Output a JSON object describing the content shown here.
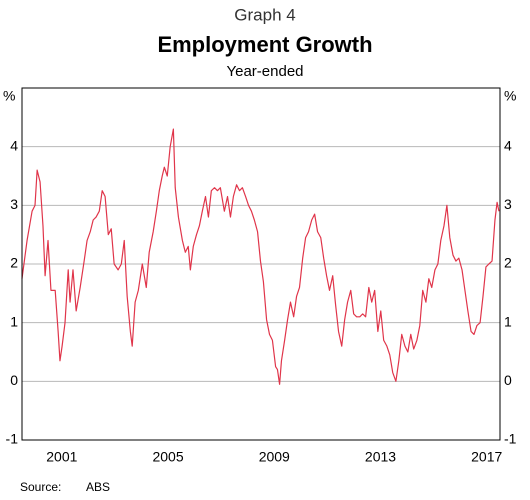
{
  "chart_data": {
    "type": "line",
    "subtitle_top": "Graph 4",
    "title": "Employment Growth",
    "subtitle": "Year-ended",
    "y_unit": "%",
    "source_label": "Source:",
    "source": "ABS",
    "color": "#e0354a",
    "xlim": [
      2000,
      2018
    ],
    "ylim": [
      -1,
      5
    ],
    "yticks": [
      -1,
      0,
      1,
      2,
      3,
      4
    ],
    "xticks": [
      {
        "value": 2001.5,
        "label": "2001"
      },
      {
        "value": 2005.5,
        "label": "2005"
      },
      {
        "value": 2009.5,
        "label": "2009"
      },
      {
        "value": 2013.5,
        "label": "2013"
      },
      {
        "value": 2017.5,
        "label": "2017"
      }
    ],
    "grid": true,
    "x": [
      2000.0,
      2000.19,
      2000.38,
      2000.49,
      2000.57,
      2000.68,
      2000.79,
      2000.87,
      2000.98,
      2001.09,
      2001.25,
      2001.36,
      2001.43,
      2001.51,
      2001.62,
      2001.74,
      2001.81,
      2001.92,
      2002.04,
      2002.19,
      2002.34,
      2002.45,
      2002.57,
      2002.68,
      2002.79,
      2002.91,
      2003.02,
      2003.13,
      2003.25,
      2003.36,
      2003.47,
      2003.62,
      2003.74,
      2003.85,
      2003.96,
      2004.08,
      2004.15,
      2004.26,
      2004.38,
      2004.53,
      2004.68,
      2004.79,
      2004.94,
      2005.06,
      2005.17,
      2005.28,
      2005.36,
      2005.47,
      2005.58,
      2005.7,
      2005.77,
      2005.89,
      2006.04,
      2006.15,
      2006.26,
      2006.34,
      2006.45,
      2006.57,
      2006.68,
      2006.79,
      2006.91,
      2007.02,
      2007.13,
      2007.25,
      2007.36,
      2007.47,
      2007.62,
      2007.74,
      2007.85,
      2007.96,
      2008.08,
      2008.19,
      2008.3,
      2008.42,
      2008.53,
      2008.64,
      2008.75,
      2008.87,
      2008.98,
      2009.09,
      2009.21,
      2009.32,
      2009.43,
      2009.55,
      2009.62,
      2009.7,
      2009.77,
      2009.89,
      2010.0,
      2010.11,
      2010.23,
      2010.34,
      2010.45,
      2010.57,
      2010.68,
      2010.79,
      2010.91,
      2011.02,
      2011.13,
      2011.25,
      2011.36,
      2011.47,
      2011.58,
      2011.7,
      2011.81,
      2011.92,
      2012.04,
      2012.15,
      2012.26,
      2012.38,
      2012.49,
      2012.6,
      2012.72,
      2012.83,
      2012.94,
      2013.06,
      2013.17,
      2013.28,
      2013.4,
      2013.51,
      2013.62,
      2013.74,
      2013.85,
      2013.96,
      2014.08,
      2014.19,
      2014.3,
      2014.42,
      2014.53,
      2014.64,
      2014.75,
      2014.87,
      2014.98,
      2015.09,
      2015.21,
      2015.32,
      2015.43,
      2015.55,
      2015.66,
      2015.77,
      2015.89,
      2016.0,
      2016.11,
      2016.23,
      2016.34,
      2016.45,
      2016.57,
      2016.68,
      2016.79,
      2016.91,
      2017.02,
      2017.13,
      2017.25,
      2017.36,
      2017.47,
      2017.58,
      2017.7,
      2017.81,
      2017.89,
      2017.96
    ],
    "values": [
      1.75,
      2.4,
      2.9,
      3.0,
      3.6,
      3.4,
      2.65,
      1.8,
      2.4,
      1.55,
      1.55,
      0.85,
      0.35,
      0.6,
      1.0,
      1.9,
      1.35,
      1.9,
      1.2,
      1.6,
      2.05,
      2.4,
      2.55,
      2.75,
      2.8,
      2.9,
      3.25,
      3.15,
      2.5,
      2.6,
      2.0,
      1.9,
      2.0,
      2.4,
      1.45,
      0.85,
      0.6,
      1.35,
      1.55,
      2.0,
      1.6,
      2.2,
      2.55,
      2.9,
      3.25,
      3.5,
      3.65,
      3.5,
      4.0,
      4.3,
      3.3,
      2.8,
      2.4,
      2.2,
      2.3,
      1.9,
      2.3,
      2.5,
      2.65,
      2.9,
      3.15,
      2.8,
      3.25,
      3.3,
      3.25,
      3.3,
      2.9,
      3.15,
      2.8,
      3.15,
      3.35,
      3.25,
      3.3,
      3.15,
      3.0,
      2.9,
      2.75,
      2.55,
      2.05,
      1.7,
      1.05,
      0.8,
      0.7,
      0.25,
      0.2,
      -0.05,
      0.35,
      0.7,
      1.05,
      1.35,
      1.1,
      1.45,
      1.6,
      2.1,
      2.45,
      2.55,
      2.75,
      2.85,
      2.55,
      2.45,
      2.1,
      1.8,
      1.55,
      1.8,
      1.3,
      0.85,
      0.6,
      1.05,
      1.35,
      1.55,
      1.15,
      1.1,
      1.1,
      1.15,
      1.1,
      1.6,
      1.35,
      1.55,
      0.85,
      1.2,
      0.7,
      0.6,
      0.45,
      0.15,
      0.0,
      0.35,
      0.8,
      0.6,
      0.5,
      0.8,
      0.55,
      0.7,
      0.95,
      1.55,
      1.35,
      1.75,
      1.6,
      1.9,
      2.0,
      2.4,
      2.65,
      3.0,
      2.45,
      2.15,
      2.05,
      2.1,
      1.9,
      1.55,
      1.2,
      0.85,
      0.8,
      0.95,
      1.0,
      1.45,
      1.95,
      2.0,
      2.05,
      2.75,
      3.05,
      2.9
    ]
  }
}
